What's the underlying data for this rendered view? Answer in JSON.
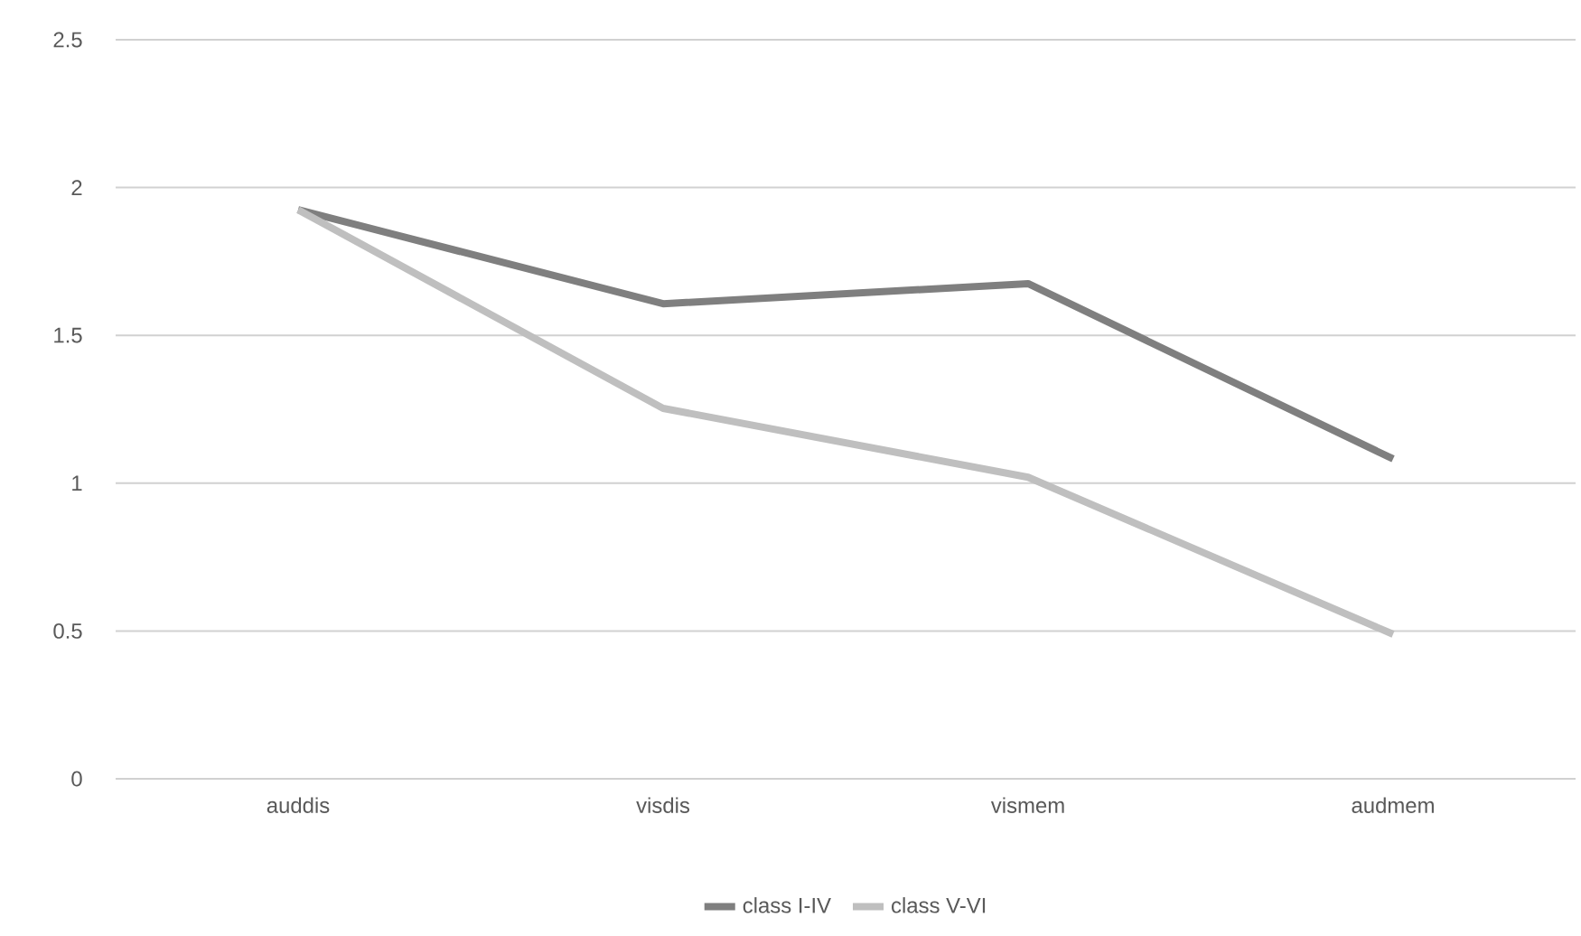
{
  "chart_data": {
    "type": "line",
    "categories": [
      "auddis",
      "visdis",
      "vismem",
      "audmem"
    ],
    "series": [
      {
        "name": "class I-IV",
        "color": "#7f7f7f",
        "values": [
          1.925,
          1.607,
          1.675,
          1.082
        ]
      },
      {
        "name": "class V-VI",
        "color": "#bfbfbf",
        "values": [
          1.925,
          1.253,
          1.02,
          0.489
        ]
      }
    ],
    "ylim": [
      0,
      2.5
    ],
    "yticks": [
      0,
      0.5,
      1,
      1.5,
      2,
      2.5
    ],
    "grid": "y",
    "legend": "bottom",
    "marker": "none",
    "line_style": "solid"
  }
}
